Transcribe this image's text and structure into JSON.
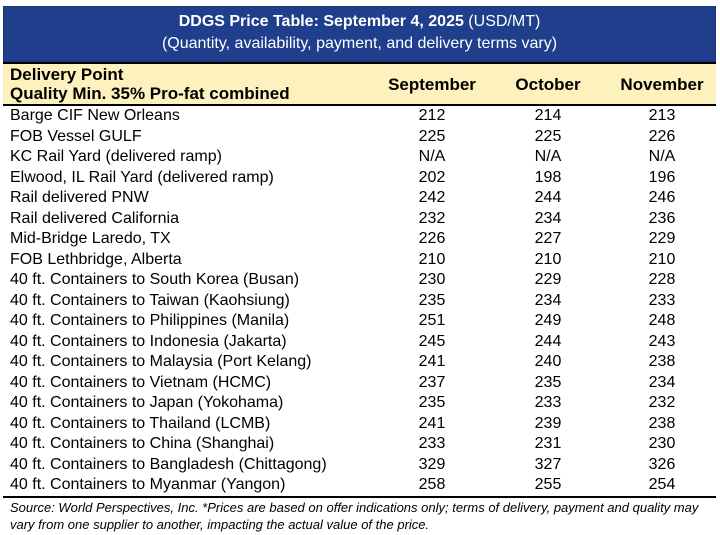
{
  "title": {
    "bold": "DDGS Price Table: September 4, 2025",
    "units": " (USD/MT)",
    "subtitle": "(Quantity, availability, payment, and delivery terms vary)"
  },
  "header": {
    "delivery_point": "Delivery Point",
    "quality": "Quality Min. 35% Pro-fat combined",
    "columns": [
      "September",
      "October",
      "November"
    ]
  },
  "rows": [
    {
      "name": "Barge CIF New Orleans",
      "values": [
        "212",
        "214",
        "213"
      ]
    },
    {
      "name": "FOB Vessel GULF",
      "values": [
        "225",
        "225",
        "226"
      ]
    },
    {
      "name": "KC Rail Yard (delivered ramp)",
      "values": [
        "N/A",
        "N/A",
        "N/A"
      ]
    },
    {
      "name": "Elwood, IL Rail Yard (delivered ramp)",
      "values": [
        "202",
        "198",
        "196"
      ]
    },
    {
      "name": "Rail delivered PNW",
      "values": [
        "242",
        "244",
        "246"
      ]
    },
    {
      "name": "Rail delivered California",
      "values": [
        "232",
        "234",
        "236"
      ]
    },
    {
      "name": "Mid-Bridge Laredo, TX",
      "values": [
        "226",
        "227",
        "229"
      ]
    },
    {
      "name": "FOB Lethbridge, Alberta",
      "values": [
        "210",
        "210",
        "210"
      ]
    },
    {
      "name": "40 ft. Containers to South Korea (Busan)",
      "values": [
        "230",
        "229",
        "228"
      ]
    },
    {
      "name": "40 ft. Containers to Taiwan (Kaohsiung)",
      "values": [
        "235",
        "234",
        "233"
      ]
    },
    {
      "name": "40 ft. Containers to Philippines (Manila)",
      "values": [
        "251",
        "249",
        "248"
      ]
    },
    {
      "name": "40 ft. Containers to Indonesia (Jakarta)",
      "values": [
        "245",
        "244",
        "243"
      ]
    },
    {
      "name": "40 ft. Containers to Malaysia (Port Kelang)",
      "values": [
        "241",
        "240",
        "238"
      ]
    },
    {
      "name": "40 ft. Containers to Vietnam (HCMC)",
      "values": [
        "237",
        "235",
        "234"
      ]
    },
    {
      "name": "40 ft. Containers to Japan (Yokohama)",
      "values": [
        "235",
        "233",
        "232"
      ]
    },
    {
      "name": "40 ft. Containers to Thailand (LCMB)",
      "values": [
        "241",
        "239",
        "238"
      ]
    },
    {
      "name": "40 ft. Containers to China (Shanghai)",
      "values": [
        "233",
        "231",
        "230"
      ]
    },
    {
      "name": "40 ft. Containers to Bangladesh (Chittagong)",
      "values": [
        "329",
        "327",
        "326"
      ]
    },
    {
      "name": "40 ft. Containers to Myanmar (Yangon)",
      "values": [
        "258",
        "255",
        "254"
      ]
    }
  ],
  "source": "Source: World Perspectives, Inc. *Prices are based on offer indications only; terms of delivery, payment and quality may vary from one supplier to another, impacting the actual value of the price.",
  "colors": {
    "title_bg": "#1f3e8c",
    "header_bg": "#fdf1bd"
  }
}
